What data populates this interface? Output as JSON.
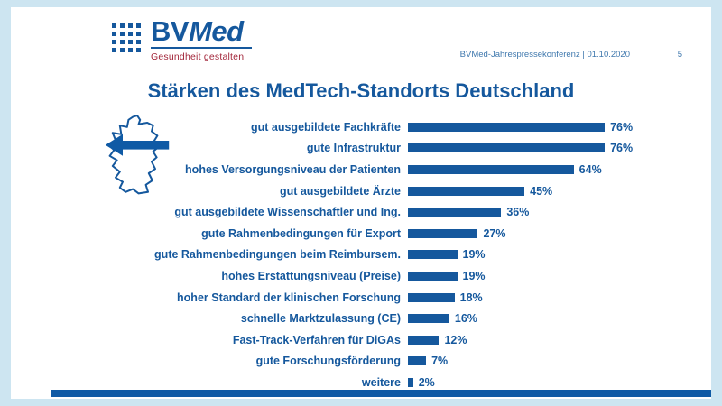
{
  "header": {
    "logo": {
      "part_bv": "BV",
      "part_med": "Med",
      "tagline": "Gesundheit gestalten"
    },
    "event_info": "BVMed-Jahrespressekonferenz | 01.10.2020",
    "page_number": "5"
  },
  "title": "Stärken des MedTech-Standorts Deutschland",
  "chart_data": {
    "type": "bar",
    "orientation": "horizontal",
    "title": "Stärken des MedTech-Standorts Deutschland",
    "categories": [
      "gut ausgebildete Fachkräfte",
      "gute Infrastruktur",
      "hohes Versorgungsniveau der Patienten",
      "gut ausgebildete Ärzte",
      "gut ausgebildete Wissenschaftler und Ing.",
      "gute Rahmenbedingungen für Export",
      "gute Rahmenbedingungen beim Reimbursem.",
      "hohes Erstattungsniveau (Preise)",
      "hoher Standard der klinischen Forschung",
      "schnelle Marktzulassung (CE)",
      "Fast-Track-Verfahren für DiGAs",
      "gute Forschungsförderung",
      "weitere"
    ],
    "values": [
      76,
      76,
      64,
      45,
      36,
      27,
      19,
      19,
      18,
      16,
      12,
      7,
      2
    ],
    "value_suffix": "%",
    "xlim": [
      0,
      100
    ],
    "grid": false,
    "legend": "none",
    "bar_color": "#15589d",
    "label_color": "#15589d"
  },
  "icons": {
    "germany_map": "germany-outline-with-left-arrow",
    "logo_dots": "bvmed-dots-pattern"
  },
  "colors": {
    "background": "#cde5f1",
    "slide": "#ffffff",
    "primary_blue": "#15589d",
    "accent_bar": "#0f5aa5",
    "tagline_red": "#a3273b"
  }
}
